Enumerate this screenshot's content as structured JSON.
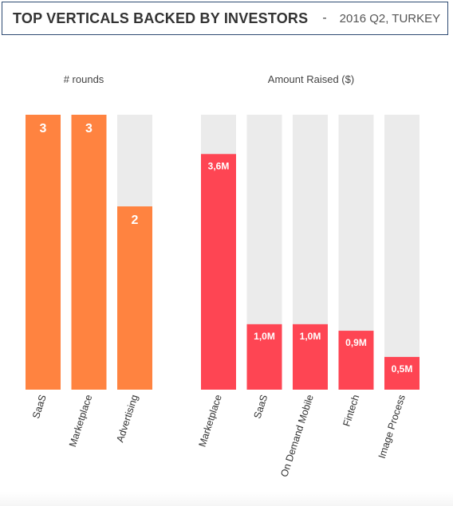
{
  "header": {
    "title": "TOP VERTICALS BACKED BY INVESTORS",
    "separator": "-",
    "subtitle": "2016 Q2, TURKEY"
  },
  "colors": {
    "rounds_bar": "#ff8340",
    "amount_bar": "#fe4553",
    "track": "#ebebeb",
    "label_text": "#333333",
    "header_border": "#2d4a72"
  },
  "chart_data": [
    {
      "type": "bar",
      "title": "# rounds",
      "categories": [
        "SaaS",
        "Marketplace",
        "Advertising"
      ],
      "values": [
        3,
        3,
        2
      ],
      "data_labels": [
        "3",
        "3",
        "2"
      ],
      "ylim": [
        0,
        3
      ],
      "grid": false,
      "legend": "none"
    },
    {
      "type": "bar",
      "title": "Amount Raised ($)",
      "categories": [
        "Marketplace",
        "SaaS",
        "On Demand Mobile",
        "Fintech",
        "Image Process"
      ],
      "values": [
        3.6,
        1.0,
        1.0,
        0.9,
        0.5
      ],
      "data_labels": [
        "3,6M",
        "1,0M",
        "1,0M",
        "0,9M",
        "0,5M"
      ],
      "unit": "M",
      "ylim": [
        0,
        4.2
      ],
      "grid": false,
      "legend": "none"
    }
  ]
}
